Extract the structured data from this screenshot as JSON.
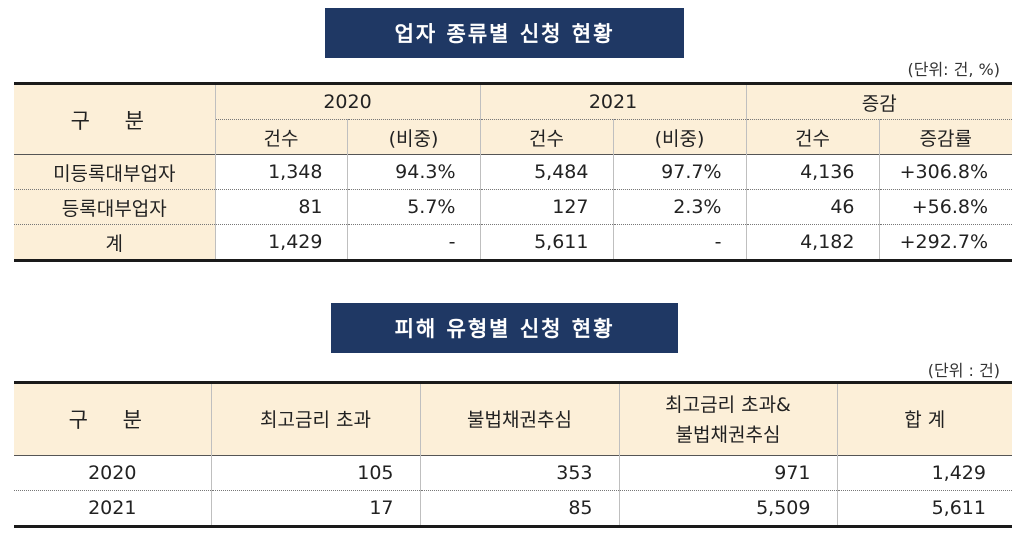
{
  "table1": {
    "title": "업자 종류별 신청 현황",
    "unit": "(단위: 건, %)",
    "header": {
      "gubun": "구 분",
      "year1": "2020",
      "year2": "2021",
      "change": "증감",
      "count": "건수",
      "ratio": "(비중)",
      "rate": "증감률"
    },
    "rows": [
      {
        "label": "미등록대부업자",
        "c2020": "1,348",
        "r2020": "94.3%",
        "c2021": "5,484",
        "r2021": "97.7%",
        "diff": "4,136",
        "rate": "+306.8%"
      },
      {
        "label": "등록대부업자",
        "c2020": "81",
        "r2020": "5.7%",
        "c2021": "127",
        "r2021": "2.3%",
        "diff": "46",
        "rate": "+56.8%"
      },
      {
        "label": "계",
        "c2020": "1,429",
        "r2020": "-",
        "c2021": "5,611",
        "r2021": "-",
        "diff": "4,182",
        "rate": "+292.7%"
      }
    ]
  },
  "table2": {
    "title": "피해 유형별 신청 현황",
    "unit": "(단위 : 건)",
    "header": {
      "gubun": "구 분",
      "col1": "최고금리 초과",
      "col2": "불법채권추심",
      "col3_line1": "최고금리 초과&",
      "col3_line2": "불법채권추심",
      "col4": "합 계"
    },
    "rows": [
      {
        "year": "2020",
        "v1": "105",
        "v2": "353",
        "v3": "971",
        "v4": "1,429"
      },
      {
        "year": "2021",
        "v1": "17",
        "v2": "85",
        "v3": "5,509",
        "v4": "5,611"
      }
    ]
  }
}
